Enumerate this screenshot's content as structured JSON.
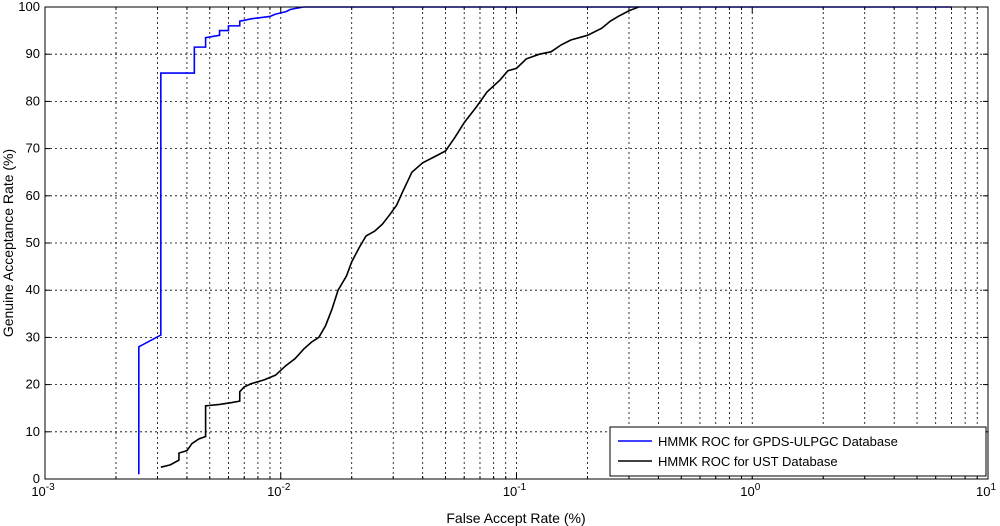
{
  "chart_data": {
    "type": "line",
    "xlabel": "False Accept Rate (%)",
    "ylabel": "Genuine Acceptance Rate (%)",
    "xscale": "log",
    "xlim": [
      0.001,
      10
    ],
    "ylim": [
      0,
      100
    ],
    "grid": true,
    "legend_position": "bottom-right",
    "y_ticks": [
      "0",
      "10",
      "20",
      "30",
      "40",
      "50",
      "60",
      "70",
      "80",
      "90",
      "100"
    ],
    "x_ticks": [
      {
        "base": "10",
        "exp": "-3"
      },
      {
        "base": "10",
        "exp": "-2"
      },
      {
        "base": "10",
        "exp": "-1"
      },
      {
        "base": "10",
        "exp": "0"
      },
      {
        "base": "10",
        "exp": "1"
      }
    ],
    "series": [
      {
        "name": "HMMK ROC for GPDS-ULPGC Database",
        "color": "#0000ff",
        "points": [
          [
            0.0025,
            1
          ],
          [
            0.0025,
            28
          ],
          [
            0.0031,
            30.5
          ],
          [
            0.0031,
            86
          ],
          [
            0.0043,
            86
          ],
          [
            0.0043,
            91.5
          ],
          [
            0.0048,
            91.5
          ],
          [
            0.0048,
            93.5
          ],
          [
            0.0055,
            94
          ],
          [
            0.0055,
            95
          ],
          [
            0.006,
            95
          ],
          [
            0.006,
            96
          ],
          [
            0.0067,
            96
          ],
          [
            0.0067,
            97
          ],
          [
            0.0075,
            97.5
          ],
          [
            0.009,
            98
          ],
          [
            0.0095,
            98.5
          ],
          [
            0.0105,
            99
          ],
          [
            0.011,
            99.5
          ],
          [
            0.0125,
            100
          ],
          [
            7,
            100
          ]
        ]
      },
      {
        "name": "HMMK ROC for UST Database",
        "color": "#000000",
        "points": [
          [
            0.0031,
            2.5
          ],
          [
            0.0034,
            3
          ],
          [
            0.0037,
            4
          ],
          [
            0.0037,
            5.5
          ],
          [
            0.004,
            6
          ],
          [
            0.0042,
            7.5
          ],
          [
            0.0045,
            8.5
          ],
          [
            0.0048,
            9
          ],
          [
            0.0048,
            15.5
          ],
          [
            0.0055,
            15.8
          ],
          [
            0.0062,
            16.2
          ],
          [
            0.0067,
            16.5
          ],
          [
            0.0067,
            18.5
          ],
          [
            0.007,
            19.5
          ],
          [
            0.0075,
            20.2
          ],
          [
            0.0085,
            21
          ],
          [
            0.0095,
            22
          ],
          [
            0.0105,
            24
          ],
          [
            0.0115,
            25.5
          ],
          [
            0.0125,
            27.5
          ],
          [
            0.0135,
            29
          ],
          [
            0.0145,
            30
          ],
          [
            0.0155,
            32.5
          ],
          [
            0.0165,
            36
          ],
          [
            0.0175,
            40
          ],
          [
            0.019,
            43
          ],
          [
            0.02,
            46
          ],
          [
            0.0215,
            49
          ],
          [
            0.023,
            51.5
          ],
          [
            0.025,
            52.5
          ],
          [
            0.027,
            54
          ],
          [
            0.029,
            56
          ],
          [
            0.031,
            58
          ],
          [
            0.033,
            61
          ],
          [
            0.036,
            65
          ],
          [
            0.04,
            67
          ],
          [
            0.045,
            68.3
          ],
          [
            0.05,
            69.5
          ],
          [
            0.055,
            72.5
          ],
          [
            0.06,
            75.5
          ],
          [
            0.068,
            79
          ],
          [
            0.075,
            82
          ],
          [
            0.085,
            84.5
          ],
          [
            0.092,
            86.5
          ],
          [
            0.1,
            87
          ],
          [
            0.11,
            89
          ],
          [
            0.125,
            90
          ],
          [
            0.14,
            90.5
          ],
          [
            0.155,
            92
          ],
          [
            0.17,
            93
          ],
          [
            0.2,
            94
          ],
          [
            0.23,
            95.5
          ],
          [
            0.25,
            97
          ],
          [
            0.27,
            98
          ],
          [
            0.3,
            99.2
          ],
          [
            0.33,
            100
          ]
        ]
      }
    ]
  }
}
